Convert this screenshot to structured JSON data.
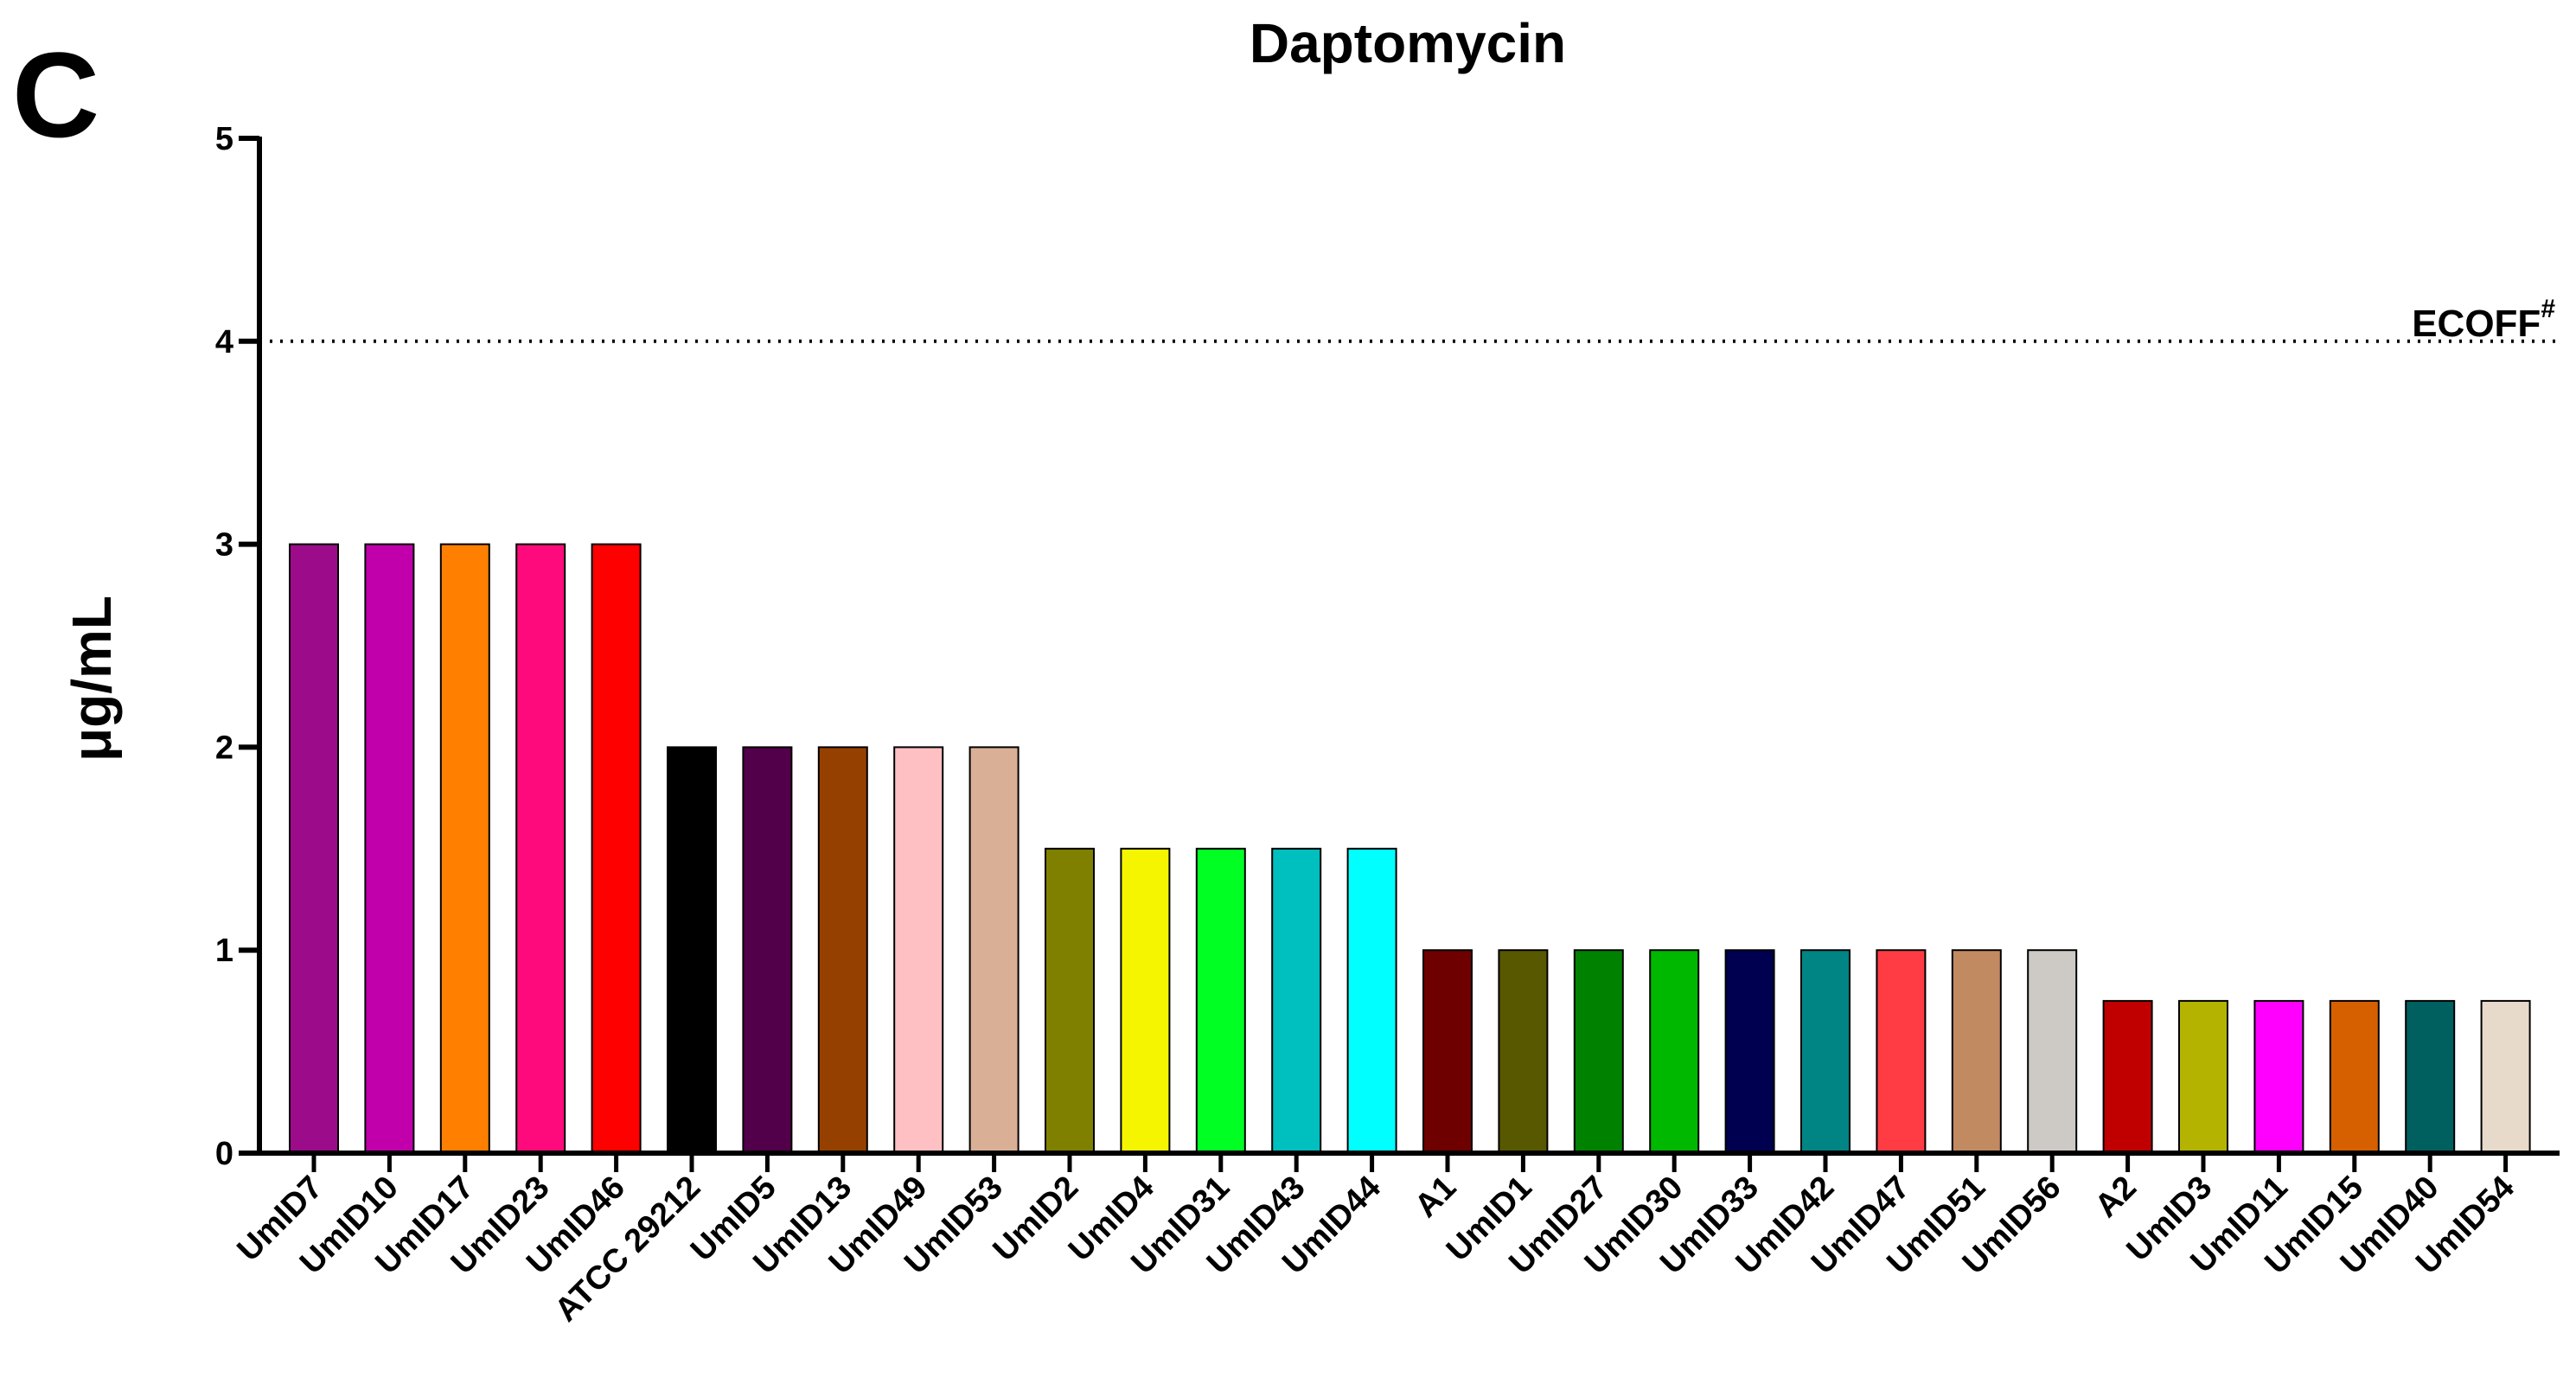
{
  "panel_label": "C",
  "chart_data": {
    "type": "bar",
    "title": "Daptomycin",
    "xlabel": "",
    "ylabel": "μg/mL",
    "ylim": [
      0,
      5
    ],
    "yticks": [
      "0",
      "1",
      "2",
      "3",
      "4",
      "5"
    ],
    "grid": false,
    "categories": [
      "UmID7",
      "UmID10",
      "UmID17",
      "UmID23",
      "UmID46",
      "ATCC 29212",
      "UmID5",
      "UmID13",
      "UmID49",
      "UmID53",
      "UmID2",
      "UmID4",
      "UmID31",
      "UmID43",
      "UmID44",
      "A1",
      "UmID1",
      "UmID27",
      "UmID30",
      "UmID33",
      "UmID42",
      "UmID47",
      "UmID51",
      "UmID56",
      "A2",
      "UmID3",
      "UmID11",
      "UmID15",
      "UmID40",
      "UmID54"
    ],
    "values": [
      3,
      3,
      3,
      3,
      3,
      2,
      2,
      2,
      2,
      2,
      1.5,
      1.5,
      1.5,
      1.5,
      1.5,
      1,
      1,
      1,
      1,
      1,
      1,
      1,
      1,
      1,
      0.75,
      0.75,
      0.75,
      0.75,
      0.75,
      0.75
    ],
    "colors": [
      "#9B0B8A",
      "#C100AB",
      "#FF8000",
      "#FF0A7C",
      "#FF0000",
      "#000000",
      "#53004A",
      "#964000",
      "#FFC0C3",
      "#D9B096",
      "#808000",
      "#F5F500",
      "#00FF22",
      "#00BFBF",
      "#00FFFF",
      "#6E0000",
      "#585800",
      "#008200",
      "#00B800",
      "#000050",
      "#008584",
      "#FF3C44",
      "#C28A61",
      "#CDC9C5",
      "#C00000",
      "#B4B400",
      "#FF00FF",
      "#D66000",
      "#005F5F",
      "#E8DACB"
    ],
    "reference_line": {
      "value": 4,
      "style": "dotted",
      "label": "ECOFF",
      "superscript": "#"
    }
  }
}
